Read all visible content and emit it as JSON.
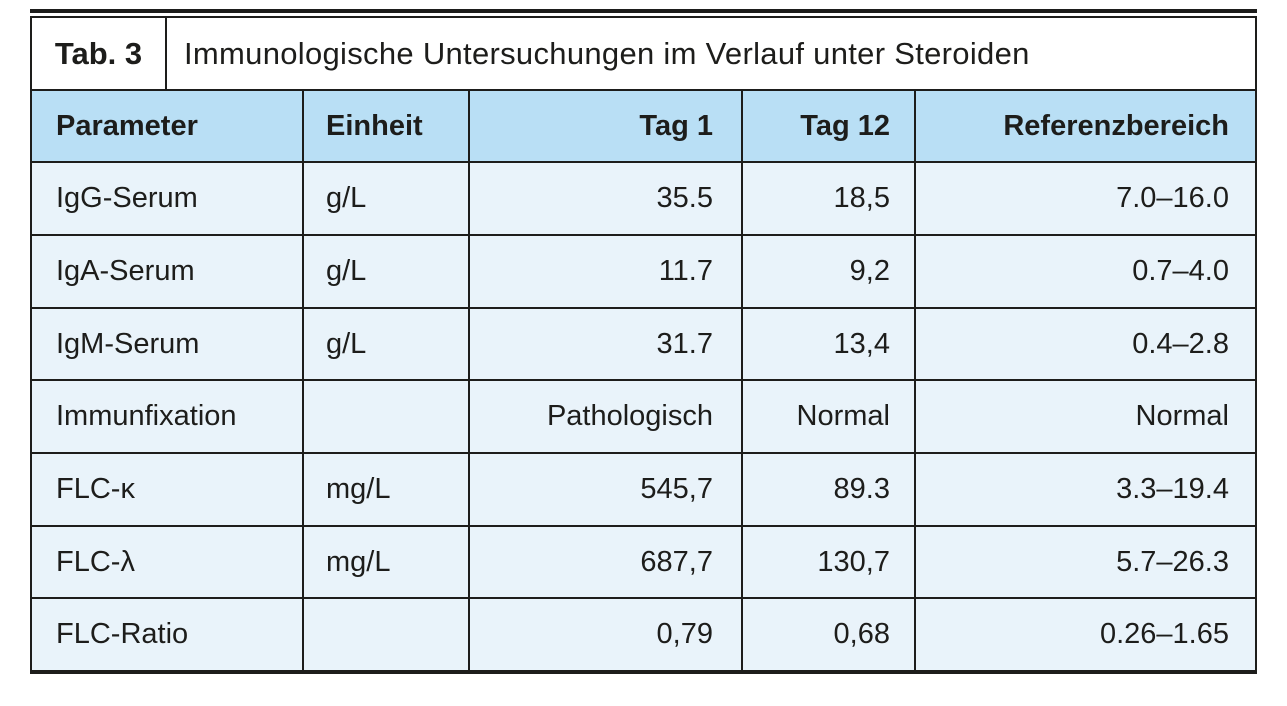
{
  "table": {
    "tag_label": "Tab. 3",
    "title": "Immunologische Untersuchungen im Verlauf unter Steroiden",
    "columns": [
      {
        "label": "Parameter",
        "align": "left"
      },
      {
        "label": "Einheit",
        "align": "left"
      },
      {
        "label": "Tag 1",
        "align": "right"
      },
      {
        "label": "Tag 12",
        "align": "right"
      },
      {
        "label": "Referenzbereich",
        "align": "right"
      }
    ],
    "rows": [
      [
        "IgG-Serum",
        "g/L",
        "35.5",
        "18,5",
        "7.0–16.0"
      ],
      [
        "IgA-Serum",
        "g/L",
        "11.7",
        "9,2",
        "0.7–4.0"
      ],
      [
        "IgM-Serum",
        "g/L",
        "31.7",
        "13,4",
        "0.4–2.8"
      ],
      [
        "Immunfixation",
        "",
        "Pathologisch",
        "Normal",
        "Normal"
      ],
      [
        "FLC-κ",
        "mg/L",
        "545,7",
        "89.3",
        "3.3–19.4"
      ],
      [
        "FLC-λ",
        "mg/L",
        "687,7",
        "130,7",
        "5.7–26.3"
      ],
      [
        "FLC-Ratio",
        "",
        "0,79",
        "0,68",
        "0.26–1.65"
      ]
    ],
    "colors": {
      "header_background": "#b9dff5",
      "row_background": "#e9f3fa",
      "border": "#1d1d1b",
      "text": "#1d1d1b"
    }
  }
}
